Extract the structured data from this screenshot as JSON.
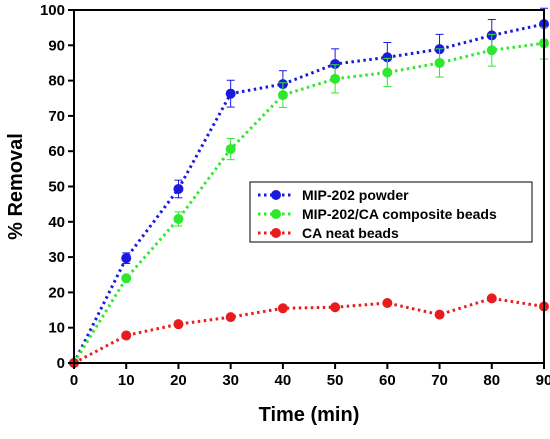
{
  "chart_data": {
    "type": "line",
    "xlabel": "Time (min)",
    "ylabel": "% Removal",
    "xlim": [
      0,
      90
    ],
    "ylim": [
      0,
      100
    ],
    "xticks": [
      0,
      10,
      20,
      30,
      40,
      50,
      60,
      70,
      80,
      90
    ],
    "yticks": [
      0,
      10,
      20,
      30,
      40,
      50,
      60,
      70,
      80,
      90,
      100
    ],
    "grid": false,
    "legend_position": "center-right",
    "x": [
      0,
      10,
      20,
      30,
      40,
      50,
      60,
      70,
      80,
      90
    ],
    "series": [
      {
        "name": "MIP-202 powder",
        "color": "#1a1adf",
        "values": [
          0,
          29.7,
          49.3,
          76.3,
          79.0,
          84.7,
          86.6,
          88.9,
          92.8,
          96.0
        ],
        "errors": [
          0,
          1.5,
          2.5,
          3.8,
          3.8,
          4.3,
          4.2,
          4.2,
          4.5,
          4.5
        ]
      },
      {
        "name": "MIP-202/CA composite beads",
        "color": "#2ee82e",
        "values": [
          0,
          24.0,
          40.8,
          60.6,
          75.9,
          80.5,
          82.3,
          85.0,
          88.6,
          90.6
        ],
        "errors": [
          0,
          0.5,
          2.0,
          3.0,
          3.5,
          4.0,
          4.0,
          4.0,
          4.5,
          4.5
        ]
      },
      {
        "name": "CA neat beads",
        "color": "#e81c1c",
        "values": [
          0,
          7.8,
          11.0,
          13.0,
          15.5,
          15.8,
          17.0,
          13.7,
          18.3,
          16.0
        ],
        "errors": [
          0,
          0,
          0,
          0,
          0,
          0,
          0,
          0,
          0,
          0
        ]
      }
    ]
  }
}
